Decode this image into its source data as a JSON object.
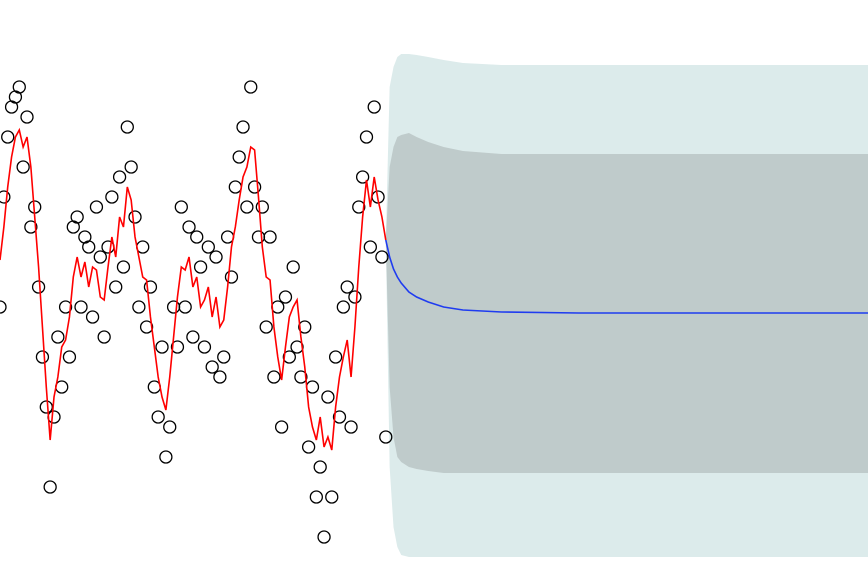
{
  "chart_data": {
    "type": "forecast",
    "xlim": [
      0,
      225
    ],
    "ylim": [
      -2.87,
      2.87
    ],
    "series": [
      {
        "type": "band",
        "color": "#dcebeb",
        "x": [
          100,
          101,
          102,
          103,
          104,
          106,
          108,
          111,
          115,
          120,
          130,
          150,
          175,
          200,
          225
        ],
        "upper": [
          0.47,
          2.0,
          2.2,
          2.3,
          2.33,
          2.33,
          2.32,
          2.3,
          2.27,
          2.24,
          2.22,
          2.22,
          2.22,
          2.22,
          2.22
        ],
        "lower": [
          0.47,
          -1.8,
          -2.4,
          -2.6,
          -2.68,
          -2.7,
          -2.7,
          -2.7,
          -2.7,
          -2.7,
          -2.7,
          -2.7,
          -2.7,
          -2.7,
          -2.7
        ]
      },
      {
        "type": "band",
        "color": "#bfcbcb",
        "x": [
          100,
          101,
          102,
          103,
          104,
          106,
          108,
          111,
          115,
          120,
          130,
          150,
          175,
          200,
          225
        ],
        "upper": [
          0.47,
          1.2,
          1.4,
          1.5,
          1.52,
          1.54,
          1.5,
          1.45,
          1.4,
          1.36,
          1.33,
          1.33,
          1.33,
          1.33,
          1.33
        ],
        "lower": [
          0.47,
          -1.0,
          -1.5,
          -1.7,
          -1.75,
          -1.8,
          -1.82,
          -1.84,
          -1.86,
          -1.86,
          -1.86,
          -1.86,
          -1.86,
          -1.86,
          -1.86
        ]
      },
      {
        "type": "scatter",
        "color": "#000000",
        "x": [
          0,
          1,
          2,
          3,
          4,
          5,
          6,
          7,
          8,
          9,
          10,
          11,
          12,
          13,
          14,
          15,
          16,
          17,
          18,
          19,
          20,
          21,
          22,
          23,
          24,
          25,
          26,
          27,
          28,
          29,
          30,
          31,
          32,
          33,
          34,
          35,
          36,
          37,
          38,
          39,
          40,
          41,
          42,
          43,
          44,
          45,
          46,
          47,
          48,
          49,
          50,
          51,
          52,
          53,
          54,
          55,
          56,
          57,
          58,
          59,
          60,
          61,
          62,
          63,
          64,
          65,
          66,
          67,
          68,
          69,
          70,
          71,
          72,
          73,
          74,
          75,
          76,
          77,
          78,
          79,
          80,
          81,
          82,
          83,
          84,
          85,
          86,
          87,
          88,
          89,
          90,
          91,
          92,
          93,
          94,
          95,
          96,
          97,
          98,
          99,
          100
        ],
        "values": [
          -0.2,
          0.9,
          1.5,
          1.8,
          1.9,
          2.0,
          1.2,
          1.7,
          0.6,
          0.8,
          0.0,
          -0.7,
          -1.2,
          -2.0,
          -1.3,
          -0.5,
          -1.0,
          -0.2,
          -0.7,
          0.6,
          0.7,
          -0.2,
          0.5,
          0.4,
          -0.3,
          0.8,
          0.3,
          -0.5,
          0.4,
          0.9,
          0.0,
          1.1,
          0.2,
          1.6,
          1.2,
          0.7,
          -0.2,
          0.4,
          -0.4,
          0.0,
          -1.0,
          -1.3,
          -0.6,
          -1.7,
          -1.4,
          -0.2,
          -0.6,
          0.8,
          -0.2,
          0.6,
          -0.5,
          0.5,
          0.2,
          -0.6,
          0.4,
          -0.8,
          0.3,
          -0.9,
          -0.7,
          0.5,
          0.1,
          1.0,
          1.3,
          1.6,
          0.8,
          2.0,
          1.0,
          0.5,
          0.8,
          -0.4,
          0.5,
          -0.9,
          -0.2,
          -1.4,
          -0.1,
          -0.7,
          0.2,
          -0.6,
          -0.9,
          -0.4,
          -1.6,
          -1.0,
          -2.1,
          -1.8,
          -2.5,
          -1.1,
          -2.1,
          -0.7,
          -1.3,
          -0.2,
          0.0,
          -1.4,
          -0.1,
          0.8,
          1.1,
          1.5,
          0.4,
          1.8,
          0.9,
          0.3,
          -1.5
        ]
      },
      {
        "type": "line",
        "color": "#ff0000",
        "x": [
          0,
          1,
          2,
          3,
          4,
          5,
          6,
          7,
          8,
          9,
          10,
          11,
          12,
          13,
          14,
          15,
          16,
          17,
          18,
          19,
          20,
          21,
          22,
          23,
          24,
          25,
          26,
          27,
          28,
          29,
          30,
          31,
          32,
          33,
          34,
          35,
          36,
          37,
          38,
          39,
          40,
          41,
          42,
          43,
          44,
          45,
          46,
          47,
          48,
          49,
          50,
          51,
          52,
          53,
          54,
          55,
          56,
          57,
          58,
          59,
          60,
          61,
          62,
          63,
          64,
          65,
          66,
          67,
          68,
          69,
          70,
          71,
          72,
          73,
          74,
          75,
          76,
          77,
          78,
          79,
          80,
          81,
          82,
          83,
          84,
          85,
          86,
          87,
          88,
          89,
          90,
          91,
          92,
          93,
          94,
          95,
          96,
          97,
          98,
          99,
          100
        ],
        "values": [
          0.27,
          0.6,
          1.0,
          1.3,
          1.5,
          1.57,
          1.4,
          1.5,
          1.2,
          0.7,
          0.2,
          -0.4,
          -1.0,
          -1.53,
          -1.1,
          -0.9,
          -0.6,
          -0.53,
          -0.3,
          0.1,
          0.3,
          0.1,
          0.25,
          0.0,
          0.2,
          0.17,
          -0.1,
          -0.13,
          0.2,
          0.5,
          0.3,
          0.7,
          0.6,
          1.0,
          0.87,
          0.5,
          0.3,
          0.1,
          0.07,
          -0.3,
          -0.6,
          -0.9,
          -1.1,
          -1.23,
          -0.9,
          -0.5,
          -0.1,
          0.2,
          0.17,
          0.3,
          0.0,
          0.1,
          -0.2,
          -0.13,
          0.0,
          -0.3,
          -0.1,
          -0.4,
          -0.33,
          0.0,
          0.4,
          0.6,
          0.87,
          1.1,
          1.2,
          1.4,
          1.37,
          0.9,
          0.4,
          0.1,
          0.07,
          -0.4,
          -0.7,
          -0.93,
          -0.6,
          -0.3,
          -0.2,
          -0.13,
          -0.5,
          -0.8,
          -1.2,
          -1.4,
          -1.53,
          -1.3,
          -1.6,
          -1.5,
          -1.63,
          -1.2,
          -0.9,
          -0.7,
          -0.53,
          -0.9,
          -0.4,
          0.2,
          0.7,
          1.07,
          0.8,
          1.1,
          0.87,
          0.7,
          0.47
        ]
      },
      {
        "type": "line",
        "color": "#1f3cf0",
        "x": [
          100,
          101,
          102,
          103,
          104,
          106,
          108,
          111,
          115,
          120,
          130,
          150,
          175,
          200,
          225
        ],
        "values": [
          0.47,
          0.3,
          0.18,
          0.1,
          0.04,
          -0.05,
          -0.1,
          -0.15,
          -0.2,
          -0.23,
          -0.25,
          -0.26,
          -0.26,
          -0.26,
          -0.26
        ]
      }
    ]
  }
}
